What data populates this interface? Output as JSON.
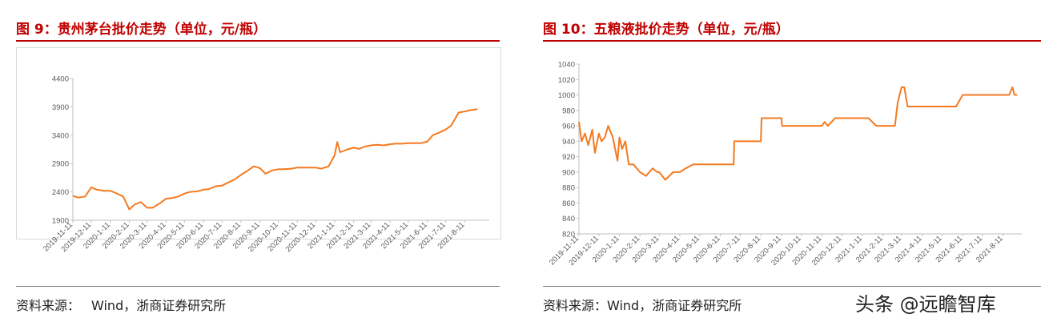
{
  "source_label": "资料来源：",
  "watermark": "头条 @远瞻智库",
  "series_color": "#f47a20",
  "chart_data": [
    {
      "type": "line",
      "title": "图 9：贵州茅台批价走势（单位，元/瓶）",
      "source": "Wind，浙商证券研究所",
      "ylim": [
        1900,
        4400
      ],
      "yticks": [
        1900,
        2400,
        2900,
        3400,
        3900,
        4400
      ],
      "xticks": [
        "2019-11-11",
        "2019-12-11",
        "2020-1-11",
        "2020-2-11",
        "2020-3-11",
        "2020-4-11",
        "2020-5-11",
        "2020-6-11",
        "2020-7-11",
        "2020-8-11",
        "2020-9-11",
        "2020-10-11",
        "2020-11-11",
        "2020-12-11",
        "2021-1-11",
        "2021-2-11",
        "2021-3-11",
        "2021-4-11",
        "2021-5-11",
        "2021-6-11",
        "2021-7-11",
        "2021-8-11"
      ],
      "grid": false,
      "series": [
        {
          "x": [
            "2019-11-11",
            "2019-11-20",
            "2019-12-01",
            "2019-12-11",
            "2019-12-20",
            "2020-01-01",
            "2020-01-11",
            "2020-01-20",
            "2020-02-01",
            "2020-02-11",
            "2020-02-20",
            "2020-03-01",
            "2020-03-11",
            "2020-03-20",
            "2020-04-01",
            "2020-04-11",
            "2020-04-20",
            "2020-05-01",
            "2020-05-11",
            "2020-05-20",
            "2020-06-01",
            "2020-06-11",
            "2020-06-20",
            "2020-07-01",
            "2020-07-11",
            "2020-07-20",
            "2020-08-01",
            "2020-08-11",
            "2020-08-20",
            "2020-09-01",
            "2020-09-11",
            "2020-09-20",
            "2020-10-01",
            "2020-10-11",
            "2020-10-20",
            "2020-11-01",
            "2020-11-11",
            "2020-11-20",
            "2020-12-01",
            "2020-12-11",
            "2020-12-20",
            "2021-01-01",
            "2021-01-11",
            "2021-01-15",
            "2021-01-20",
            "2021-02-01",
            "2021-02-11",
            "2021-02-20",
            "2021-03-01",
            "2021-03-11",
            "2021-03-20",
            "2021-04-01",
            "2021-04-11",
            "2021-04-20",
            "2021-05-01",
            "2021-05-11",
            "2021-05-20",
            "2021-06-01",
            "2021-06-11",
            "2021-06-20",
            "2021-07-01",
            "2021-07-11",
            "2021-07-20",
            "2021-08-01",
            "2021-08-11",
            "2021-08-20",
            "2021-09-01"
          ],
          "y": [
            2330,
            2300,
            2320,
            2480,
            2440,
            2420,
            2420,
            2380,
            2320,
            2090,
            2180,
            2220,
            2120,
            2120,
            2200,
            2280,
            2290,
            2320,
            2370,
            2400,
            2410,
            2440,
            2450,
            2500,
            2510,
            2560,
            2620,
            2700,
            2760,
            2850,
            2820,
            2720,
            2780,
            2800,
            2800,
            2810,
            2830,
            2830,
            2830,
            2830,
            2810,
            2850,
            3050,
            3280,
            3100,
            3150,
            3180,
            3160,
            3200,
            3220,
            3230,
            3220,
            3240,
            3250,
            3250,
            3260,
            3260,
            3260,
            3290,
            3400,
            3450,
            3500,
            3570,
            3800,
            3820,
            3840,
            3860
          ]
        }
      ]
    },
    {
      "type": "line",
      "title": "图 10：五粮液批价走势（单位，元/瓶）",
      "source": "资料来源：Wind，浙商证券研究所",
      "ylim": [
        820,
        1040
      ],
      "yticks": [
        820,
        840,
        860,
        880,
        900,
        920,
        940,
        960,
        980,
        1000,
        1020,
        1040
      ],
      "xticks": [
        "2019-11-11",
        "2019-12-11",
        "2020-1-11",
        "2020-2-11",
        "2020-3-11",
        "2020-4-11",
        "2020-5-11",
        "2020-6-11",
        "2020-7-11",
        "2020-8-11",
        "2020-9-11",
        "2020-10-11",
        "2020-11-11",
        "2020-12-11",
        "2021-1-11",
        "2021-2-11",
        "2021-3-11",
        "2021-4-11",
        "2021-5-11",
        "2021-6-11",
        "2021-7-11",
        "2021-8-11"
      ],
      "grid": false,
      "series": [
        {
          "x": [
            "2019-11-11",
            "2019-11-15",
            "2019-11-20",
            "2019-11-25",
            "2019-12-01",
            "2019-12-05",
            "2019-12-11",
            "2019-12-15",
            "2019-12-20",
            "2019-12-25",
            "2020-01-01",
            "2020-01-08",
            "2020-01-11",
            "2020-01-15",
            "2020-01-20",
            "2020-01-25",
            "2020-02-01",
            "2020-02-11",
            "2020-02-20",
            "2020-03-01",
            "2020-03-08",
            "2020-03-11",
            "2020-03-20",
            "2020-04-01",
            "2020-04-11",
            "2020-04-20",
            "2020-05-01",
            "2020-05-11",
            "2020-05-20",
            "2020-06-01",
            "2020-06-11",
            "2020-07-01",
            "2020-07-02",
            "2020-07-11",
            "2020-07-20",
            "2020-08-01",
            "2020-08-11",
            "2020-08-12",
            "2020-08-20",
            "2020-09-01",
            "2020-09-11",
            "2020-09-12",
            "2020-09-20",
            "2020-10-01",
            "2020-10-11",
            "2020-11-01",
            "2020-11-11",
            "2020-11-15",
            "2020-11-20",
            "2020-12-01",
            "2020-12-11",
            "2020-12-20",
            "2021-01-01",
            "2021-01-11",
            "2021-01-20",
            "2021-02-01",
            "2021-02-11",
            "2021-02-20",
            "2021-03-01",
            "2021-03-05",
            "2021-03-11",
            "2021-03-15",
            "2021-03-20",
            "2021-04-01",
            "2021-04-11",
            "2021-04-20",
            "2021-05-01",
            "2021-05-11",
            "2021-05-20",
            "2021-06-01",
            "2021-06-11",
            "2021-06-20",
            "2021-07-01",
            "2021-07-11",
            "2021-07-20",
            "2021-08-01",
            "2021-08-11",
            "2021-08-20",
            "2021-08-25",
            "2021-08-28",
            "2021-09-01"
          ],
          "y": [
            965,
            940,
            950,
            935,
            955,
            925,
            950,
            940,
            945,
            960,
            945,
            915,
            945,
            930,
            940,
            910,
            910,
            900,
            895,
            905,
            900,
            900,
            890,
            900,
            900,
            905,
            910,
            910,
            910,
            910,
            910,
            910,
            940,
            940,
            940,
            940,
            940,
            970,
            970,
            970,
            970,
            960,
            960,
            960,
            960,
            960,
            960,
            965,
            960,
            970,
            970,
            970,
            970,
            970,
            970,
            960,
            960,
            960,
            960,
            990,
            1010,
            1010,
            985,
            985,
            985,
            985,
            985,
            985,
            985,
            985,
            1000,
            1000,
            1000,
            1000,
            1000,
            1000,
            1000,
            1000,
            1010,
            1000,
            1000
          ]
        }
      ]
    }
  ]
}
